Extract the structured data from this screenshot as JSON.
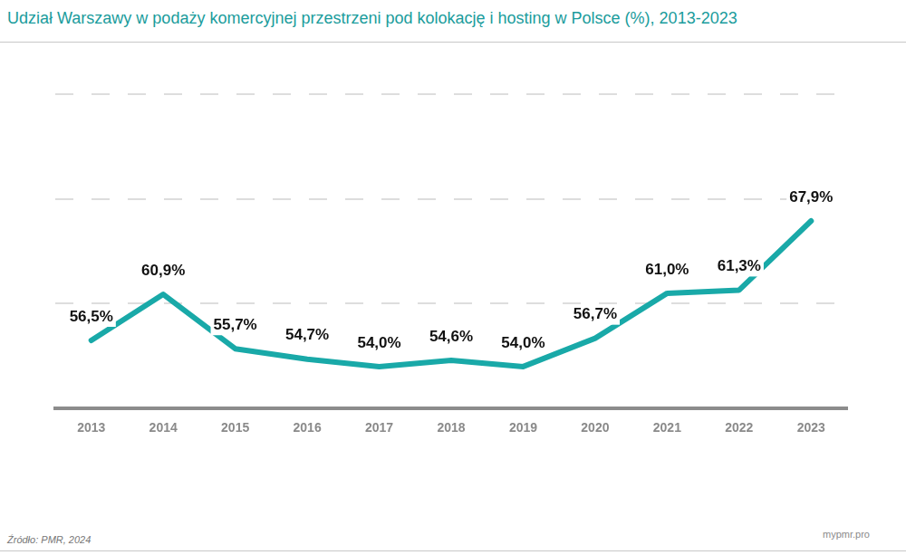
{
  "chart_data": {
    "type": "line",
    "title": "Udział Warszawy w podaży komercyjnej przestrzeni pod kolokację i hosting w Polsce (%), 2013-2023",
    "categories": [
      "2013",
      "2014",
      "2015",
      "2016",
      "2017",
      "2018",
      "2019",
      "2020",
      "2021",
      "2022",
      "2023"
    ],
    "values": [
      56.5,
      60.9,
      55.7,
      54.7,
      54.0,
      54.6,
      54.0,
      56.7,
      61.0,
      61.3,
      67.9
    ],
    "value_labels": [
      "56,5%",
      "60,9%",
      "55,7%",
      "54,7%",
      "54,0%",
      "54,6%",
      "54,0%",
      "56,7%",
      "61,0%",
      "61,3%",
      "67,9%"
    ],
    "data_labels": true,
    "color": "#19a9a8",
    "line_style": "solid",
    "ylim": [
      50,
      80
    ],
    "yticks": [
      50,
      60,
      70,
      80
    ],
    "tick_labels": "x",
    "grid": true,
    "source": "Źródło: PMR, 2024",
    "annotations": [
      "mypmr.pro"
    ]
  }
}
